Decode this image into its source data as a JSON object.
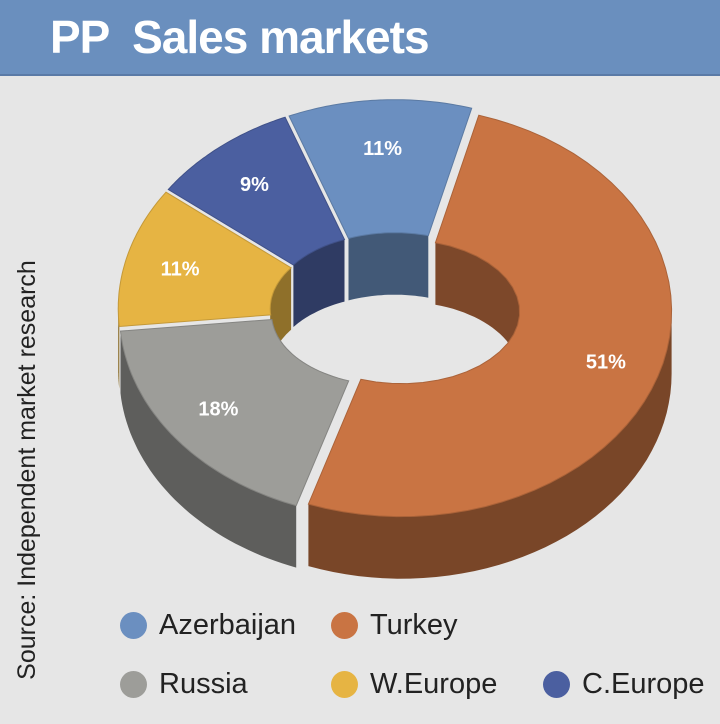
{
  "header": {
    "title": "PP  Sales markets",
    "color": "#6a8fbe"
  },
  "source": "Source: Independent market research",
  "chart_data": {
    "type": "pie",
    "style": "3d-donut",
    "title": "PP  Sales markets",
    "series": [
      {
        "name": "Azerbaijan",
        "value": 11,
        "label": "11%",
        "color": "#6b8fc0"
      },
      {
        "name": "Turkey",
        "value": 51,
        "label": "51%",
        "color": "#c97443"
      },
      {
        "name": "Russia",
        "value": 18,
        "label": "18%",
        "color": "#9d9d99"
      },
      {
        "name": "W.Europe",
        "value": 11,
        "label": "11%",
        "color": "#e6b443"
      },
      {
        "name": "C.Europe",
        "value": 9,
        "label": "9%",
        "color": "#4b5fa0"
      }
    ],
    "legend_position": "bottom"
  },
  "legend": [
    {
      "label": "Azerbaijan",
      "color": "#6b8fc0"
    },
    {
      "label": "Turkey",
      "color": "#c97443"
    },
    {
      "label": "Russia",
      "color": "#9d9d99"
    },
    {
      "label": "W.Europe",
      "color": "#e6b443"
    },
    {
      "label": "C.Europe",
      "color": "#4b5fa0"
    }
  ]
}
